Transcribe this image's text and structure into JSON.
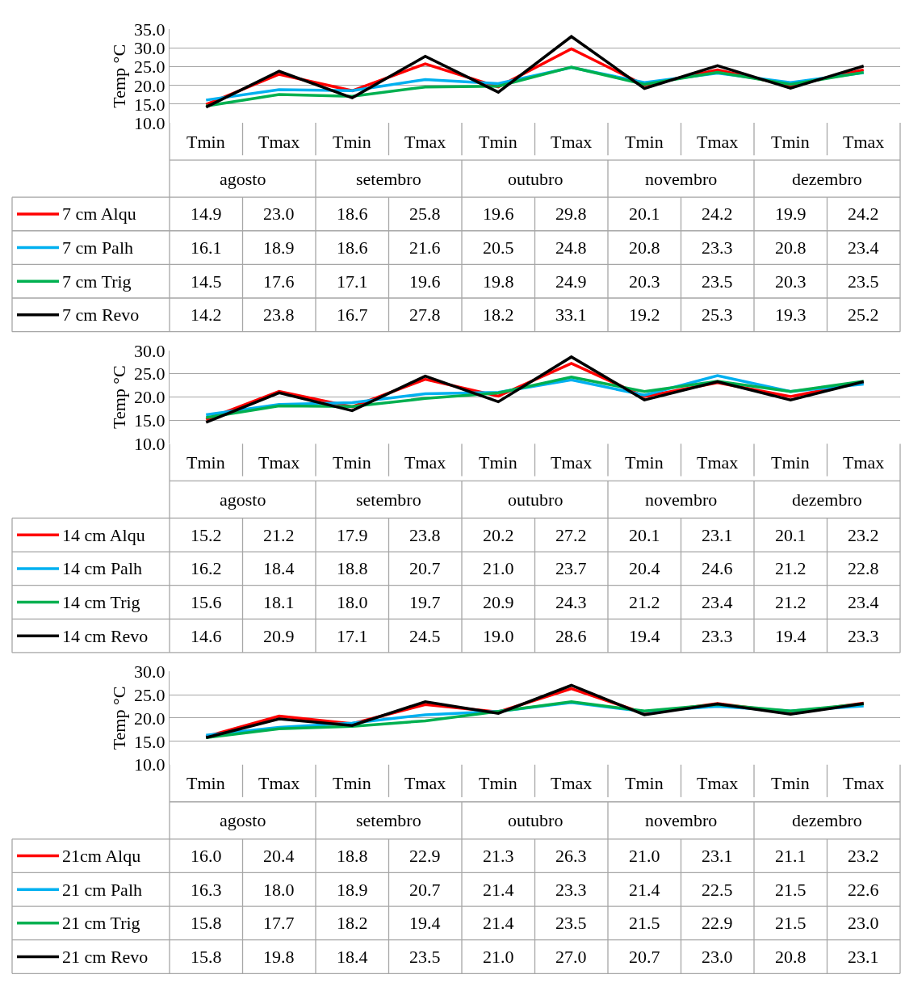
{
  "chart_data": [
    {
      "type": "line",
      "ylabel": "Temp °C",
      "categories": [
        "Tmin",
        "Tmax",
        "Tmin",
        "Tmax",
        "Tmin",
        "Tmax",
        "Tmin",
        "Tmax",
        "Tmin",
        "Tmax"
      ],
      "annotations": [
        "agosto",
        "setembro",
        "outubro",
        "novembro",
        "dezembro"
      ],
      "ylim": [
        10,
        35
      ],
      "yticks": [
        {
          "value": 10,
          "label": "10.0"
        },
        {
          "value": 15,
          "label": "15.0"
        },
        {
          "value": 20,
          "label": "20.0"
        },
        {
          "value": 25,
          "label": "25.0"
        },
        {
          "value": 30,
          "label": "30.0"
        },
        {
          "value": 35,
          "label": "35.0"
        }
      ],
      "grid": "y",
      "legend": "bottom",
      "marker": "none",
      "line_style": "solid",
      "series": [
        {
          "name": "7 cm Alqu",
          "color": "#ff0000",
          "values": [
            14.9,
            23.0,
            18.6,
            25.8,
            19.6,
            29.8,
            20.1,
            24.2,
            19.9,
            24.2
          ],
          "value_labels": [
            "14.9",
            "23.0",
            "18.6",
            "25.8",
            "19.6",
            "29.8",
            "20.1",
            "24.2",
            "19.9",
            "24.2"
          ]
        },
        {
          "name": "7 cm Palh",
          "color": "#00b0f0",
          "values": [
            16.1,
            18.9,
            18.6,
            21.6,
            20.5,
            24.8,
            20.8,
            23.3,
            20.8,
            23.4
          ],
          "value_labels": [
            "16.1",
            "18.9",
            "18.6",
            "21.6",
            "20.5",
            "24.8",
            "20.8",
            "23.3",
            "20.8",
            "23.4"
          ]
        },
        {
          "name": "7 cm Trig",
          "color": "#00b050",
          "values": [
            14.5,
            17.6,
            17.1,
            19.6,
            19.8,
            24.9,
            20.3,
            23.5,
            20.3,
            23.5
          ],
          "value_labels": [
            "14.5",
            "17.6",
            "17.1",
            "19.6",
            "19.8",
            "24.9",
            "20.3",
            "23.5",
            "20.3",
            "23.5"
          ]
        },
        {
          "name": "7 cm Revo",
          "color": "#000000",
          "values": [
            14.2,
            23.8,
            16.7,
            27.8,
            18.2,
            33.1,
            19.2,
            25.3,
            19.3,
            25.2
          ],
          "value_labels": [
            "14.2",
            "23.8",
            "16.7",
            "27.8",
            "18.2",
            "33.1",
            "19.2",
            "25.3",
            "19.3",
            "25.2"
          ]
        }
      ]
    },
    {
      "type": "line",
      "ylabel": "Temp °C",
      "categories": [
        "Tmin",
        "Tmax",
        "Tmin",
        "Tmax",
        "Tmin",
        "Tmax",
        "Tmin",
        "Tmax",
        "Tmin",
        "Tmax"
      ],
      "annotations": [
        "agosto",
        "setembro",
        "outubro",
        "novembro",
        "dezembro"
      ],
      "ylim": [
        10,
        30
      ],
      "yticks": [
        {
          "value": 10,
          "label": "10.0"
        },
        {
          "value": 15,
          "label": "15.0"
        },
        {
          "value": 20,
          "label": "20.0"
        },
        {
          "value": 25,
          "label": "25.0"
        },
        {
          "value": 30,
          "label": "30.0"
        }
      ],
      "grid": "y",
      "legend": "bottom",
      "marker": "none",
      "line_style": "solid",
      "series": [
        {
          "name": "14 cm Alqu",
          "color": "#ff0000",
          "values": [
            15.2,
            21.2,
            17.9,
            23.8,
            20.2,
            27.2,
            20.1,
            23.1,
            20.1,
            23.2
          ],
          "value_labels": [
            "15.2",
            "21.2",
            "17.9",
            "23.8",
            "20.2",
            "27.2",
            "20.1",
            "23.1",
            "20.1",
            "23.2"
          ]
        },
        {
          "name": "14 cm Palh",
          "color": "#00b0f0",
          "values": [
            16.2,
            18.4,
            18.8,
            20.7,
            21.0,
            23.7,
            20.4,
            24.6,
            21.2,
            22.8
          ],
          "value_labels": [
            "16.2",
            "18.4",
            "18.8",
            "20.7",
            "21.0",
            "23.7",
            "20.4",
            "24.6",
            "21.2",
            "22.8"
          ]
        },
        {
          "name": "14 cm Trig",
          "color": "#00b050",
          "values": [
            15.6,
            18.1,
            18.0,
            19.7,
            20.9,
            24.3,
            21.2,
            23.4,
            21.2,
            23.4
          ],
          "value_labels": [
            "15.6",
            "18.1",
            "18.0",
            "19.7",
            "20.9",
            "24.3",
            "21.2",
            "23.4",
            "21.2",
            "23.4"
          ]
        },
        {
          "name": "14 cm Revo",
          "color": "#000000",
          "values": [
            14.6,
            20.9,
            17.1,
            24.5,
            19.0,
            28.6,
            19.4,
            23.3,
            19.4,
            23.3
          ],
          "value_labels": [
            "14.6",
            "20.9",
            "17.1",
            "24.5",
            "19.0",
            "28.6",
            "19.4",
            "23.3",
            "19.4",
            "23.3"
          ]
        }
      ]
    },
    {
      "type": "line",
      "ylabel": "Temp °C",
      "categories": [
        "Tmin",
        "Tmax",
        "Tmin",
        "Tmax",
        "Tmin",
        "Tmax",
        "Tmin",
        "Tmax",
        "Tmin",
        "Tmax"
      ],
      "annotations": [
        "agosto",
        "setembro",
        "outubro",
        "novembro",
        "dezembro"
      ],
      "ylim": [
        10,
        30
      ],
      "yticks": [
        {
          "value": 10,
          "label": "10.0"
        },
        {
          "value": 15,
          "label": "15.0"
        },
        {
          "value": 20,
          "label": "20.0"
        },
        {
          "value": 25,
          "label": "25.0"
        },
        {
          "value": 30,
          "label": "30.0"
        }
      ],
      "grid": "y",
      "legend": "bottom",
      "marker": "none",
      "line_style": "solid",
      "series": [
        {
          "name": "21cm Alqu",
          "color": "#ff0000",
          "values": [
            16.0,
            20.4,
            18.8,
            22.9,
            21.3,
            26.3,
            21.0,
            23.1,
            21.1,
            23.2
          ],
          "value_labels": [
            "16.0",
            "20.4",
            "18.8",
            "22.9",
            "21.3",
            "26.3",
            "21.0",
            "23.1",
            "21.1",
            "23.2"
          ]
        },
        {
          "name": "21 cm Palh",
          "color": "#00b0f0",
          "values": [
            16.3,
            18.0,
            18.9,
            20.7,
            21.4,
            23.3,
            21.4,
            22.5,
            21.5,
            22.6
          ],
          "value_labels": [
            "16.3",
            "18.0",
            "18.9",
            "20.7",
            "21.4",
            "23.3",
            "21.4",
            "22.5",
            "21.5",
            "22.6"
          ]
        },
        {
          "name": "21 cm Trig",
          "color": "#00b050",
          "values": [
            15.8,
            17.7,
            18.2,
            19.4,
            21.4,
            23.5,
            21.5,
            22.9,
            21.5,
            23.0
          ],
          "value_labels": [
            "15.8",
            "17.7",
            "18.2",
            "19.4",
            "21.4",
            "23.5",
            "21.5",
            "22.9",
            "21.5",
            "23.0"
          ]
        },
        {
          "name": "21 cm Revo",
          "color": "#000000",
          "values": [
            15.8,
            19.8,
            18.4,
            23.5,
            21.0,
            27.0,
            20.7,
            23.0,
            20.8,
            23.1
          ],
          "value_labels": [
            "15.8",
            "19.8",
            "18.4",
            "23.5",
            "21.0",
            "27.0",
            "20.7",
            "23.0",
            "20.8",
            "23.1"
          ]
        }
      ]
    }
  ]
}
